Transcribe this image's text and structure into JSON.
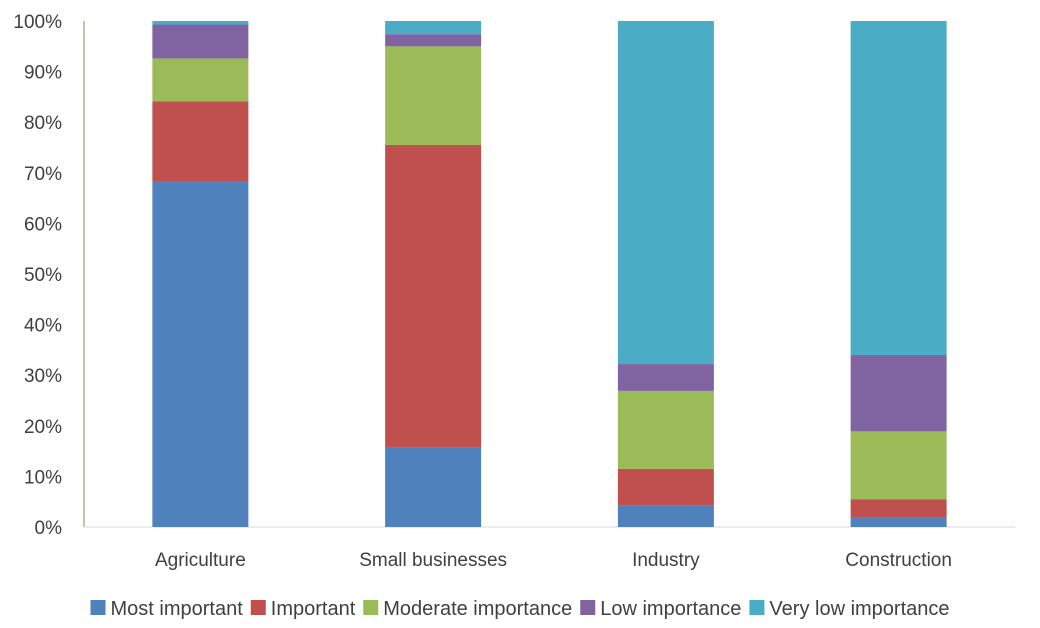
{
  "chart_data": {
    "type": "bar",
    "stacked": true,
    "percent_stacked": true,
    "title": "",
    "xlabel": "",
    "ylabel": "",
    "ylim": [
      0,
      100
    ],
    "y_ticks": [
      "0%",
      "10%",
      "20%",
      "30%",
      "40%",
      "50%",
      "60%",
      "70%",
      "80%",
      "90%",
      "100%"
    ],
    "grid": false,
    "legend_position": "bottom",
    "categories": [
      "Agriculture",
      "Small businesses",
      "Industry",
      "Construction"
    ],
    "series": [
      {
        "name": "Most important",
        "color": "#4f81bd",
        "values": [
          68.2,
          15.8,
          4.2,
          1.8
        ]
      },
      {
        "name": "Important",
        "color": "#c0504d",
        "values": [
          15.9,
          59.7,
          7.3,
          3.7
        ]
      },
      {
        "name": "Moderate importance",
        "color": "#9bbb59",
        "values": [
          8.5,
          19.5,
          15.4,
          13.4
        ]
      },
      {
        "name": "Low importance",
        "color": "#8064a2",
        "values": [
          6.7,
          2.4,
          5.3,
          15.1
        ]
      },
      {
        "name": "Very low importance",
        "color": "#4bacc6",
        "values": [
          0.7,
          2.6,
          67.8,
          66.0
        ]
      }
    ]
  }
}
